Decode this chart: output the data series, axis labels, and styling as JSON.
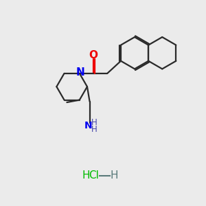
{
  "bg_color": "#ebebeb",
  "bond_color": "#2a2a2a",
  "N_color": "#0000ee",
  "O_color": "#ee0000",
  "NH_color": "#4444aa",
  "Cl_color": "#00bb00",
  "H_color": "#5a7a7a",
  "lw": 1.6,
  "xlim": [
    0,
    10
  ],
  "ylim": [
    0,
    10
  ]
}
